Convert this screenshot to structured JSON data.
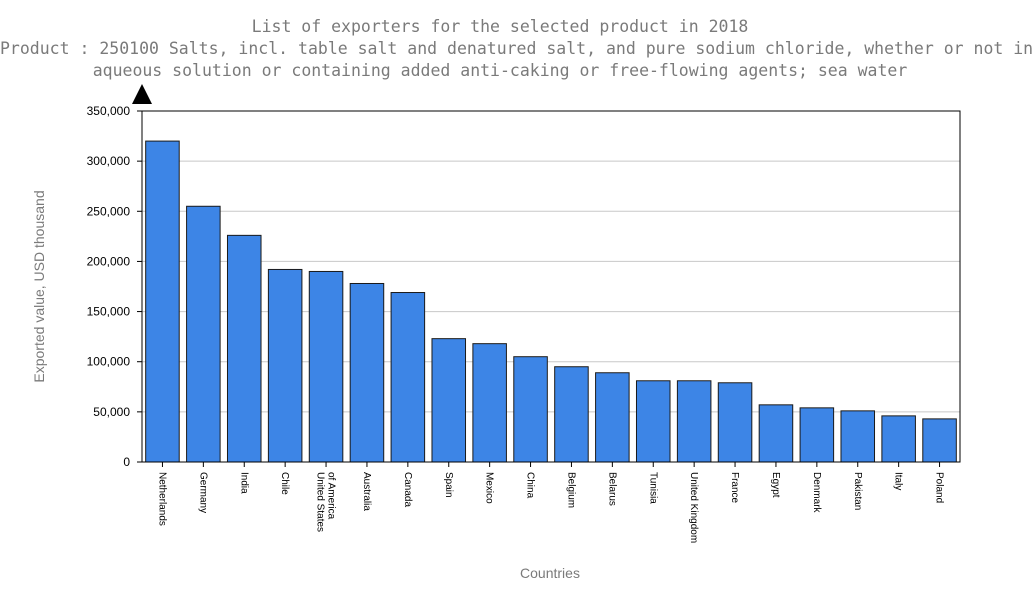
{
  "chart_data": {
    "type": "bar",
    "title": "List of exporters for the selected product in 2018",
    "subtitle_lines": [
      "Product : 250100 Salts, incl. table salt and denatured salt, and pure sodium chloride, whether or not in",
      "aqueous solution or containing added anti-caking or free-flowing agents; sea water"
    ],
    "xlabel": "Countries",
    "ylabel": "Exported value, USD thousand",
    "ylim": [
      0,
      350000
    ],
    "yticks": [
      0,
      50000,
      100000,
      150000,
      200000,
      250000,
      300000,
      350000
    ],
    "ytick_labels": [
      "0",
      "50,000",
      "100,000",
      "150,000",
      "200,000",
      "250,000",
      "300,000",
      "350,000"
    ],
    "grid": true,
    "bar_color": "#3d85e6",
    "categories": [
      [
        "Netherlands"
      ],
      [
        "Germany"
      ],
      [
        "India"
      ],
      [
        "Chile"
      ],
      [
        "United States",
        "of America"
      ],
      [
        "Australia"
      ],
      [
        "Canada"
      ],
      [
        "Spain"
      ],
      [
        "Mexico"
      ],
      [
        "China"
      ],
      [
        "Belgium"
      ],
      [
        "Belarus"
      ],
      [
        "Tunisia"
      ],
      [
        "United Kingdom"
      ],
      [
        "France"
      ],
      [
        "Egypt"
      ],
      [
        "Denmark"
      ],
      [
        "Pakistan"
      ],
      [
        "Italy"
      ],
      [
        "Poland"
      ]
    ],
    "values": [
      320000,
      255000,
      226000,
      192000,
      190000,
      178000,
      169000,
      123000,
      118000,
      105000,
      95000,
      89000,
      81000,
      81000,
      79000,
      57000,
      54000,
      51000,
      46000,
      43000
    ]
  }
}
